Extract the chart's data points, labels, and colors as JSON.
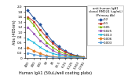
{
  "title": "anti-human IgA1\nclonal RM024 (ug/mL)\n(Primary Ab)",
  "xlabel": "Human IgA1 (50uL/well coating plate)",
  "ylabel": "Abs (405nm)",
  "x_labels": [
    "400",
    "200",
    "100",
    "50",
    "25",
    "12.5",
    "6.25",
    "3.125",
    "1.563",
    "0.781"
  ],
  "series": [
    {
      "label": "0.2",
      "color": "#1f4e99",
      "values": [
        1.85,
        1.55,
        1.3,
        0.95,
        0.65,
        0.45,
        0.28,
        0.16,
        0.09,
        0.05
      ]
    },
    {
      "label": "0.1",
      "color": "#c0392b",
      "values": [
        1.6,
        1.42,
        1.1,
        0.82,
        0.58,
        0.38,
        0.24,
        0.14,
        0.08,
        0.04
      ]
    },
    {
      "label": "0.05",
      "color": "#7fb800",
      "values": [
        1.55,
        1.28,
        0.92,
        0.62,
        0.42,
        0.27,
        0.17,
        0.1,
        0.06,
        0.03
      ]
    },
    {
      "label": "0.025",
      "color": "#9b59b6",
      "values": [
        1.2,
        0.95,
        0.68,
        0.48,
        0.3,
        0.18,
        0.12,
        0.07,
        0.04,
        0.02
      ]
    },
    {
      "label": "0.013",
      "color": "#00b0d8",
      "values": [
        0.75,
        0.6,
        0.42,
        0.28,
        0.18,
        0.12,
        0.08,
        0.05,
        0.03,
        0.02
      ]
    },
    {
      "label": "0.006",
      "color": "#e67e22",
      "values": [
        0.4,
        0.28,
        0.18,
        0.1,
        0.06,
        0.04,
        0.03,
        0.02,
        0.01,
        0.01
      ]
    },
    {
      "label": "0.003",
      "color": "#5b9bd5",
      "values": [
        0.2,
        0.14,
        0.09,
        0.06,
        0.04,
        0.03,
        0.02,
        0.01,
        0.01,
        0.01
      ]
    }
  ],
  "ylim": [
    0,
    2.0
  ],
  "yticks": [
    0,
    0.2,
    0.4,
    0.6,
    0.8,
    1.0,
    1.2,
    1.4,
    1.6,
    1.8,
    2.0
  ],
  "bg_color": "#ffffff",
  "grid": false,
  "figsize": [
    1.77,
    1.06
  ],
  "dpi": 100
}
